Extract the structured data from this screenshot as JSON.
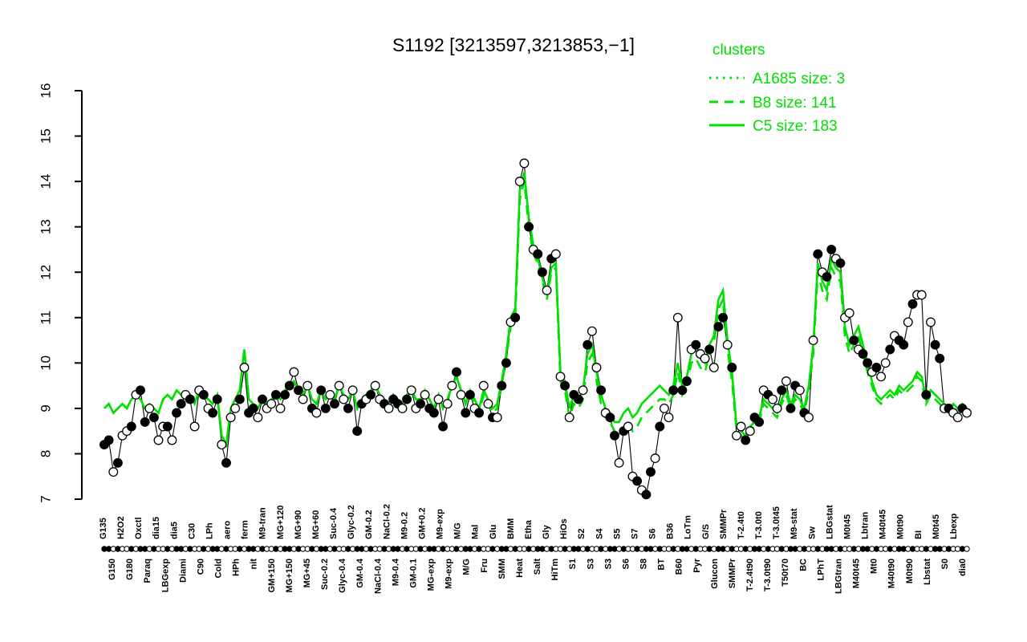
{
  "title": "S1192 [3213597,3213853,−1]",
  "legend": {
    "title": "clusters",
    "entries": [
      {
        "label": "A1685 size: 3",
        "style": "dotted"
      },
      {
        "label": "B8 size: 141",
        "style": "dashed"
      },
      {
        "label": "C5 size: 183",
        "style": "solid"
      }
    ]
  },
  "colors": {
    "cluster": "#00e000",
    "points_line": "#000000",
    "background": "#ffffff"
  },
  "chart_data": {
    "type": "line",
    "title": "S1192 [3213597,3213853,−1]",
    "ylim": [
      7,
      16
    ],
    "yticks": [
      7,
      8,
      9,
      10,
      11,
      12,
      13,
      14,
      15,
      16
    ],
    "legend_position": "top-right",
    "grid": false,
    "x_labels": {
      "top": [
        "G135",
        "H2O2",
        "Oxctl",
        "dia15",
        "dia5",
        "C30",
        "LPh",
        "aero",
        "ferm",
        "M9-tran",
        "MG+120",
        "MG+90",
        "MG+60",
        "Suc-0.4",
        "Glyc-0.2",
        "GM-0.2",
        "NaCl-0.2",
        "M9-0.2",
        "GM+0.2",
        "M9-exp",
        "M/G",
        "Mal",
        "Glu",
        "BMM",
        "Etha",
        "Gly",
        "HiOs",
        "S2",
        "S4",
        "S5",
        "S7",
        "S6",
        "B36",
        "LoTm",
        "G/S",
        "SMMPr",
        "T-2.4t0",
        "T-3.0t0",
        "T-3.0t45",
        "M9-stat",
        "Sw",
        "LBGstat",
        "M0t45",
        "Lbtran",
        "M40t45",
        "M0t90",
        "BI",
        "M0t45",
        "Lbexp"
      ],
      "bottom": [
        "G150",
        "G180",
        "Paraq",
        "LBGexp",
        "Diami",
        "C90",
        "Cold",
        "HPh",
        "nit",
        "GM+150",
        "MG+150",
        "MG+45",
        "Suc-0.2",
        "Glyc-0.4",
        "GM-0.4",
        "NaCl-0.4",
        "M9-0.4",
        "GM-0.1",
        "MG-exp",
        "M9-exp",
        "M/G",
        "Fru",
        "SMM",
        "Heat",
        "Salt",
        "HiTm",
        "S1",
        "S3",
        "S3",
        "S6",
        "S8",
        "BT",
        "B60",
        "Pyr",
        "Glucon",
        "SMMPr",
        "T-2.4t90",
        "T-3.0t90",
        "T50t70",
        "BC",
        "LPhT",
        "LBGtran",
        "M40t45",
        "Mt0",
        "M40t90",
        "M0t90",
        "Lbstat",
        "S0",
        "dia0"
      ]
    },
    "series": [
      {
        "name": "expression",
        "color": "#000000",
        "marker": "circle",
        "fills": "110100101101001011010010110100101101001011010010110100101101001011010010110100101101001011010010110100101101001011010010110100101101001011010010110100101101001011010010110100101101001011010010",
        "values": [
          8.2,
          8.3,
          7.6,
          7.8,
          8.4,
          8.5,
          8.6,
          9.3,
          9.4,
          8.7,
          9.0,
          8.8,
          8.3,
          8.6,
          8.6,
          8.3,
          8.9,
          9.1,
          9.3,
          9.2,
          8.6,
          9.4,
          9.3,
          9.0,
          8.9,
          9.2,
          8.2,
          7.8,
          8.8,
          9.0,
          9.2,
          9.9,
          8.9,
          9.0,
          8.8,
          9.2,
          9.0,
          9.1,
          9.3,
          9.0,
          9.3,
          9.5,
          9.8,
          9.4,
          9.2,
          9.5,
          9.0,
          8.9,
          9.4,
          9.0,
          9.3,
          9.1,
          9.5,
          9.2,
          9.0,
          9.4,
          8.5,
          9.1,
          9.2,
          9.3,
          9.5,
          9.2,
          9.1,
          9.0,
          9.2,
          9.1,
          9.0,
          9.2,
          9.4,
          9.0,
          9.1,
          9.3,
          9.0,
          8.9,
          9.2,
          8.6,
          9.1,
          9.5,
          9.8,
          9.3,
          8.9,
          9.3,
          9.0,
          8.9,
          9.5,
          9.1,
          8.8,
          8.8,
          9.5,
          10.0,
          10.9,
          11.0,
          14.0,
          14.4,
          13.0,
          12.5,
          12.4,
          12.0,
          11.6,
          12.3,
          12.4,
          9.7,
          9.5,
          8.8,
          9.3,
          9.2,
          9.4,
          10.4,
          10.7,
          9.9,
          9.4,
          8.9,
          8.8,
          8.4,
          7.8,
          8.5,
          8.6,
          7.5,
          7.4,
          7.2,
          7.1,
          7.6,
          7.9,
          8.6,
          9.0,
          8.8,
          9.4,
          11.0,
          9.4,
          9.6,
          10.3,
          10.4,
          10.2,
          10.1,
          10.3,
          9.9,
          10.8,
          11.0,
          10.4,
          9.9,
          8.4,
          8.6,
          8.3,
          8.5,
          8.8,
          8.7,
          9.4,
          9.3,
          9.2,
          9.0,
          9.4,
          9.6,
          9.0,
          9.5,
          9.4,
          8.9,
          8.8,
          10.5,
          12.4,
          12.0,
          11.9,
          12.5,
          12.3,
          12.2,
          11.0,
          11.1,
          10.5,
          10.3,
          10.2,
          10.0,
          9.8,
          9.9,
          9.7,
          10.0,
          10.3,
          10.6,
          10.5,
          10.4,
          10.9,
          11.3,
          11.5,
          11.5,
          9.3,
          10.9,
          10.4,
          10.1,
          9.0,
          9.0,
          8.9,
          8.8,
          9.0,
          8.9
        ]
      },
      {
        "name": "C5",
        "size": 183,
        "dash": "solid",
        "color": "#00e000",
        "values": [
          9.0,
          9.1,
          8.9,
          9.0,
          9.1,
          9.0,
          9.2,
          9.3,
          9.2,
          9.0,
          9.1,
          9.0,
          8.9,
          9.2,
          9.3,
          9.2,
          9.4,
          9.3,
          9.2,
          9.3,
          9.1,
          9.4,
          9.3,
          9.2,
          9.1,
          9.3,
          8.4,
          8.2,
          9.0,
          9.2,
          9.4,
          10.3,
          9.2,
          9.1,
          9.0,
          9.2,
          9.1,
          9.2,
          9.3,
          9.2,
          9.4,
          9.5,
          9.6,
          9.4,
          9.3,
          9.5,
          9.2,
          9.1,
          9.4,
          9.2,
          9.3,
          9.2,
          9.5,
          9.3,
          9.2,
          9.4,
          9.0,
          9.2,
          9.3,
          9.4,
          9.5,
          9.3,
          9.2,
          9.1,
          9.3,
          9.2,
          9.1,
          9.3,
          9.4,
          9.2,
          9.2,
          9.4,
          9.2,
          9.0,
          9.3,
          9.0,
          9.2,
          9.5,
          9.7,
          9.4,
          9.1,
          9.4,
          9.2,
          9.0,
          9.4,
          9.2,
          9.0,
          9.1,
          9.6,
          10.2,
          11.0,
          11.2,
          13.8,
          14.2,
          13.2,
          12.6,
          12.3,
          11.9,
          11.5,
          12.1,
          12.2,
          9.8,
          9.6,
          9.0,
          9.3,
          9.2,
          9.4,
          10.2,
          10.4,
          9.8,
          9.3,
          9.0,
          8.9,
          8.7,
          8.7,
          8.9,
          9.0,
          8.8,
          8.9,
          9.1,
          9.2,
          9.3,
          9.4,
          9.5,
          9.4,
          9.3,
          9.5,
          10.0,
          9.5,
          9.7,
          10.2,
          10.3,
          10.1,
          10.0,
          10.4,
          10.6,
          11.4,
          11.6,
          10.5,
          9.8,
          8.6,
          8.5,
          8.4,
          8.6,
          8.7,
          8.8,
          9.2,
          9.1,
          9.0,
          8.9,
          9.2,
          9.4,
          9.1,
          9.3,
          9.2,
          9.0,
          9.5,
          10.4,
          12.2,
          11.8,
          11.6,
          12.3,
          12.1,
          12.0,
          10.8,
          10.4,
          10.6,
          10.8,
          10.4,
          10.0,
          9.6,
          9.3,
          9.2,
          9.3,
          9.4,
          9.3,
          9.5,
          9.4,
          9.5,
          9.6,
          9.8,
          9.7,
          9.2,
          9.4,
          9.3,
          9.2,
          9.1,
          9.0,
          9.1,
          9.0,
          9.1,
          9.0
        ]
      },
      {
        "name": "B8",
        "size": 141,
        "dash": "dashed",
        "color": "#00e000",
        "values": [
          9.0,
          9.1,
          8.9,
          9.0,
          9.1,
          9.0,
          9.2,
          9.3,
          9.2,
          9.0,
          9.1,
          9.0,
          8.9,
          9.2,
          9.3,
          9.2,
          9.4,
          9.3,
          9.2,
          9.3,
          9.1,
          9.4,
          9.3,
          9.2,
          9.1,
          9.3,
          8.4,
          8.2,
          9.0,
          9.2,
          9.4,
          10.3,
          9.2,
          9.1,
          9.0,
          9.2,
          9.1,
          9.2,
          9.3,
          9.2,
          9.4,
          9.5,
          9.6,
          9.4,
          9.3,
          9.5,
          9.2,
          9.1,
          9.4,
          9.2,
          9.3,
          9.2,
          9.5,
          9.3,
          9.2,
          9.4,
          9.0,
          9.2,
          9.3,
          9.4,
          9.5,
          9.3,
          9.2,
          9.1,
          9.3,
          9.2,
          9.1,
          9.3,
          9.4,
          9.2,
          9.2,
          9.4,
          9.2,
          9.0,
          9.3,
          9.0,
          9.2,
          9.5,
          9.7,
          9.4,
          9.1,
          9.3,
          9.1,
          8.9,
          9.3,
          9.1,
          8.9,
          9.0,
          9.5,
          10.1,
          10.8,
          11.0,
          13.6,
          14.0,
          13.0,
          12.4,
          12.2,
          11.8,
          11.4,
          12.0,
          12.1,
          9.6,
          9.4,
          8.8,
          9.1,
          9.0,
          9.2,
          10.0,
          10.2,
          9.6,
          9.1,
          8.8,
          8.7,
          8.5,
          8.4,
          8.6,
          8.7,
          8.5,
          8.6,
          8.8,
          8.9,
          9.0,
          9.1,
          9.2,
          9.2,
          9.1,
          9.3,
          9.8,
          9.3,
          9.5,
          10.0,
          10.1,
          9.9,
          9.8,
          10.2,
          10.4,
          11.2,
          11.4,
          10.3,
          9.6,
          8.5,
          8.4,
          8.3,
          8.5,
          8.6,
          8.7,
          9.1,
          9.0,
          8.9,
          8.8,
          9.1,
          9.3,
          9.0,
          9.2,
          9.1,
          8.9,
          9.4,
          10.2,
          12.0,
          11.6,
          11.4,
          12.1,
          11.9,
          11.8,
          10.6,
          10.2,
          10.4,
          10.6,
          10.2,
          9.8,
          9.5,
          9.2,
          9.1,
          9.2,
          9.3,
          9.2,
          9.4,
          9.3,
          9.4,
          9.5,
          9.7,
          9.6,
          9.1,
          9.3,
          9.2,
          9.1,
          9.0,
          8.9,
          9.0,
          8.9,
          9.0,
          8.9
        ]
      },
      {
        "name": "A1685",
        "size": 3,
        "dash": "dotted",
        "color": "#00e000",
        "values": []
      }
    ]
  }
}
